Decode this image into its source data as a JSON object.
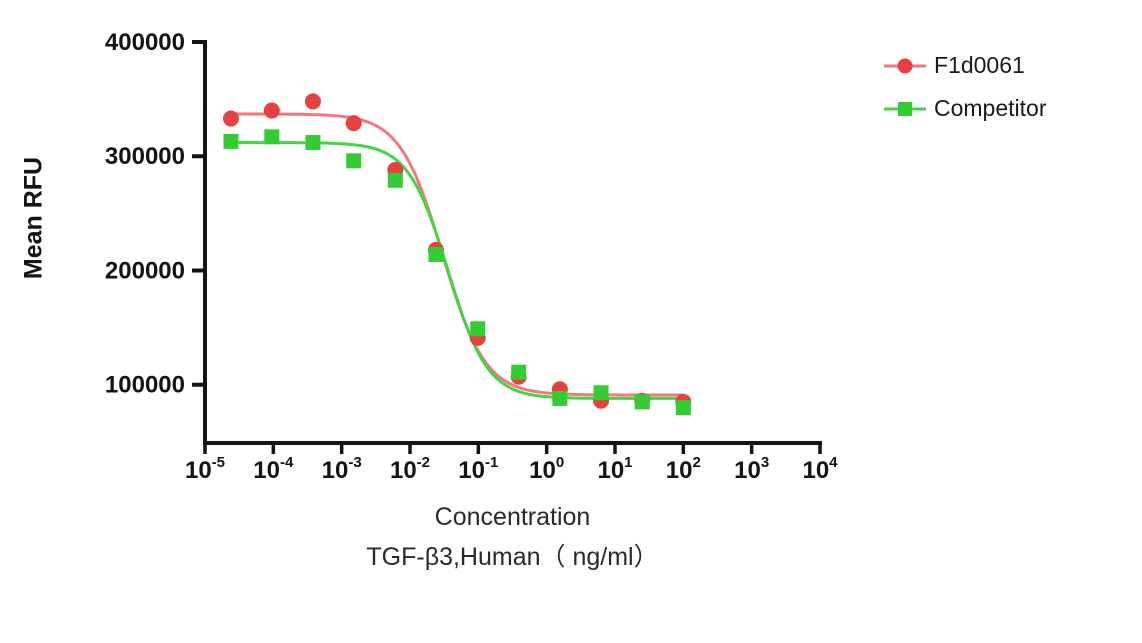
{
  "chart_data": {
    "type": "scatter-line",
    "title": "",
    "ylabel": "Mean RFU",
    "xlabel_line1": "Concentration",
    "xlabel_line2": "TGF-β3,Human（ ng/ml）",
    "x_scale": "log10",
    "xlim_log": [
      -5,
      4
    ],
    "ylim": [
      49000,
      400000
    ],
    "y_ticks": [
      100000,
      200000,
      300000,
      400000
    ],
    "x_ticks_log": [
      -5,
      -4,
      -3,
      -2,
      -1,
      0,
      1,
      2,
      3,
      4
    ],
    "grid": false,
    "legend_position": "top-right",
    "legend": [
      "F1d0061",
      "Competitor"
    ],
    "series": [
      {
        "name": "F1d0061",
        "marker": "circle",
        "color": "#e8403e",
        "line_color": "#f2787e",
        "x": [
          2.4e-05,
          9.5e-05,
          0.00038,
          0.0015,
          0.0061,
          0.024,
          0.098,
          0.39,
          1.56,
          6.25,
          25,
          100
        ],
        "y": [
          333000,
          340000,
          348000,
          329000,
          288000,
          218000,
          141000,
          107000,
          96000,
          86000,
          86000,
          85000
        ],
        "fit": {
          "top": 337000,
          "bottom": 91000,
          "ic50": 0.03,
          "hill": 1.4
        }
      },
      {
        "name": "Competitor",
        "marker": "square",
        "color": "#33cc33",
        "line_color": "#44d544",
        "x": [
          2.4e-05,
          9.5e-05,
          0.00038,
          0.0015,
          0.0061,
          0.024,
          0.098,
          0.39,
          1.56,
          6.25,
          25,
          100
        ],
        "y": [
          313000,
          317000,
          312000,
          296000,
          279000,
          214000,
          149000,
          111000,
          88000,
          93000,
          85000,
          80000
        ],
        "fit": {
          "top": 312000,
          "bottom": 88000,
          "ic50": 0.036,
          "hill": 1.5
        }
      }
    ]
  }
}
